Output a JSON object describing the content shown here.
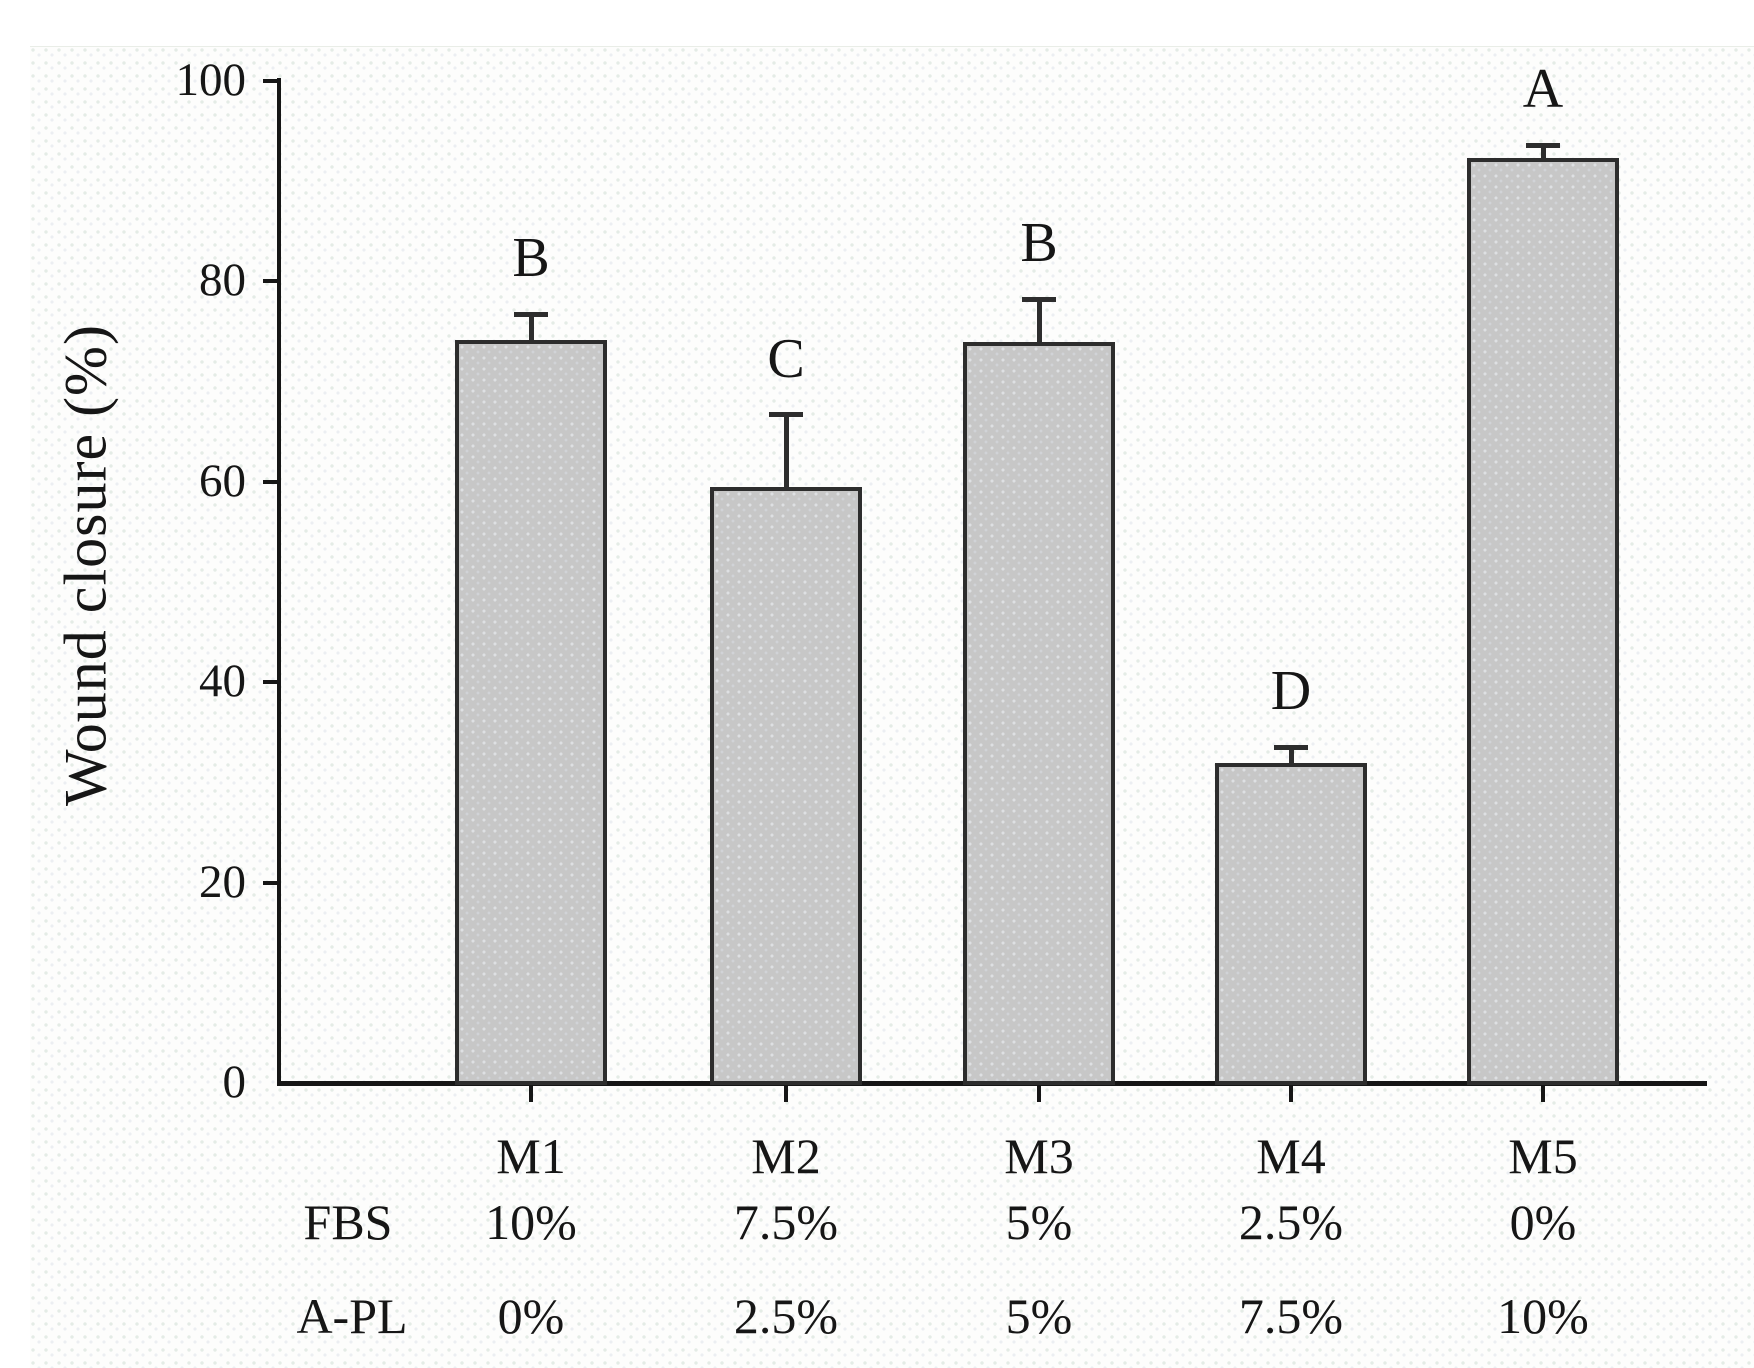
{
  "chart_data": {
    "type": "bar",
    "title": "",
    "xlabel": "",
    "ylabel": "Wound closure (%)",
    "ylim": [
      0,
      100
    ],
    "yticks": [
      0,
      20,
      40,
      60,
      80,
      100
    ],
    "ytick_labels": [
      "0",
      "20",
      "40",
      "60",
      "80",
      "100"
    ],
    "grid": "off",
    "legend": "none",
    "categories": [
      "M1",
      "M2",
      "M3",
      "M4",
      "M5"
    ],
    "values": [
      74.2,
      59.5,
      74.0,
      31.9,
      92.3
    ],
    "errors_plus": [
      2.5,
      7.2,
      4.2,
      1.6,
      1.3
    ],
    "sig_letters": [
      "B",
      "C",
      "B",
      "D",
      "A"
    ],
    "condition_rows": [
      {
        "header": "FBS",
        "values": [
          "10%",
          "7.5%",
          "5%",
          "2.5%",
          "0%"
        ]
      },
      {
        "header": "A-PL",
        "values": [
          "0%",
          "2.5%",
          "5%",
          "7.5%",
          "10%"
        ]
      }
    ],
    "bar_fill_color": "#c7c7c7",
    "bar_border_color": "#2d2d2d",
    "axis_color": "#161616",
    "background_color": "#fdfdfc"
  }
}
